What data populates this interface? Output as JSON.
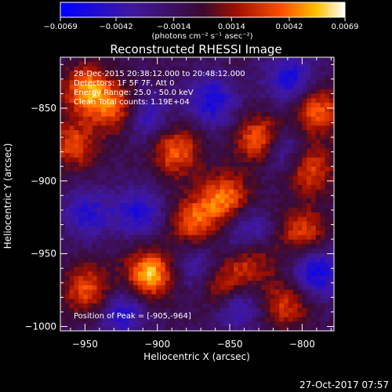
{
  "chart_data": {
    "type": "heatmap",
    "title": "Reconstructed RHESSI Image",
    "xlabel": "Heliocentric X (arcsec)",
    "ylabel": "Heliocentric Y (arcsec)",
    "xlim": [
      -967,
      -778
    ],
    "ylim": [
      -1003,
      -815
    ],
    "xticks": [
      -950,
      -900,
      -850,
      -800
    ],
    "yticks": [
      -1000,
      -950,
      -900,
      -850
    ],
    "xtick_labels": [
      "−950",
      "−900",
      "−850",
      "−800"
    ],
    "ytick_labels": [
      "−1000",
      "−950",
      "−900",
      "−850"
    ],
    "colorbar": {
      "min": -0.0069,
      "max": 0.0069,
      "ticks": [
        -0.0069,
        -0.0042,
        -0.0014,
        0.0014,
        0.0042,
        0.0069
      ],
      "tick_labels": [
        "−0.0069",
        "−0.0042",
        "−0.0014",
        "0.0014",
        "0.0042",
        "0.0069"
      ],
      "units": "(photons cm⁻² s⁻¹ asec⁻²)"
    },
    "info_lines": [
      "28-Dec-2015 20:38:12.000 to 20:48:12.000",
      "Detectors: 1F 5F 7F, Att 0",
      "Energy Range: 25.0 - 50.0 keV",
      "Clean    Total counts: 1.19E+04"
    ],
    "peak_label": "Position of Peak = [-905,-964]",
    "peak": [
      -905,
      -964
    ],
    "bright_sources": [
      {
        "x": -948,
        "y": -838,
        "value": 0.0062
      },
      {
        "x": -925,
        "y": -852,
        "value": 0.0058
      },
      {
        "x": -828,
        "y": -872,
        "value": 0.0064
      },
      {
        "x": -790,
        "y": -852,
        "value": 0.0052
      },
      {
        "x": -795,
        "y": -892,
        "value": 0.0046
      },
      {
        "x": -887,
        "y": -880,
        "value": 0.005
      },
      {
        "x": -853,
        "y": -912,
        "value": 0.0056
      },
      {
        "x": -875,
        "y": -928,
        "value": 0.005
      },
      {
        "x": -958,
        "y": -875,
        "value": 0.0044
      },
      {
        "x": -948,
        "y": -975,
        "value": 0.005
      },
      {
        "x": -905,
        "y": -964,
        "value": 0.0069
      },
      {
        "x": -855,
        "y": -972,
        "value": 0.0048
      },
      {
        "x": -835,
        "y": -955,
        "value": 0.0036
      },
      {
        "x": -800,
        "y": -935,
        "value": 0.0044
      },
      {
        "x": -812,
        "y": -985,
        "value": 0.004
      }
    ],
    "dark_sources": [
      {
        "x": -912,
        "y": -855,
        "value": -0.005
      },
      {
        "x": -862,
        "y": -845,
        "value": -0.0044
      },
      {
        "x": -808,
        "y": -830,
        "value": -0.0044
      },
      {
        "x": -815,
        "y": -878,
        "value": -0.0046
      },
      {
        "x": -912,
        "y": -922,
        "value": -0.004
      },
      {
        "x": -948,
        "y": -922,
        "value": -0.0036
      },
      {
        "x": -838,
        "y": -935,
        "value": -0.0036
      },
      {
        "x": -845,
        "y": -985,
        "value": -0.004
      },
      {
        "x": -790,
        "y": -962,
        "value": -0.005
      },
      {
        "x": -925,
        "y": -990,
        "value": -0.004
      },
      {
        "x": -872,
        "y": -960,
        "value": -0.0032
      }
    ]
  },
  "footer": {
    "timestamp": "27-Oct-2017 07:57"
  }
}
